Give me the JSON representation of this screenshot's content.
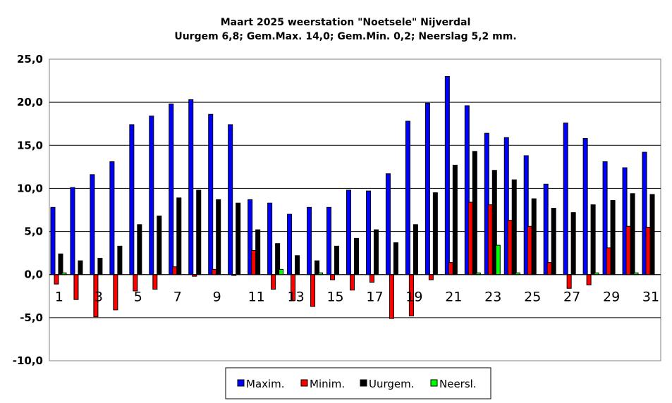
{
  "chart_data": {
    "type": "bar",
    "title": "Maart 2025  weerstation \"Noetsele\" Nijverdal",
    "subtitle": "Uurgem 6,8; Gem.Max. 14,0; Gem.Min. 0,2; Neerslag 5,2 mm.",
    "xlabel": "",
    "ylabel": "",
    "ylim": [
      -10,
      25
    ],
    "ytick_step": 5,
    "ytick_labels": [
      "25,0",
      "20,0",
      "15,0",
      "10,0",
      "5,0",
      "0,0",
      "-5,0",
      "-10,0"
    ],
    "grid": true,
    "legend_position": "bottom-center",
    "categories": [
      "1",
      "2",
      "3",
      "4",
      "5",
      "6",
      "7",
      "8",
      "9",
      "10",
      "11",
      "12",
      "13",
      "14",
      "15",
      "16",
      "17",
      "18",
      "19",
      "20",
      "21",
      "22",
      "23",
      "24",
      "25",
      "26",
      "27",
      "28",
      "29",
      "30",
      "31"
    ],
    "x_tick_labels": [
      "1",
      "3",
      "5",
      "7",
      "9",
      "11",
      "13",
      "15",
      "17",
      "19",
      "21",
      "23",
      "25",
      "27",
      "29",
      "31"
    ],
    "series": [
      {
        "name": "Maxim.",
        "color": "#0000ff",
        "values": [
          7.8,
          10.1,
          11.6,
          13.1,
          17.4,
          18.4,
          19.8,
          20.3,
          18.6,
          17.4,
          8.7,
          8.3,
          7.0,
          7.8,
          7.8,
          9.8,
          9.7,
          11.7,
          17.8,
          19.9,
          23.0,
          19.6,
          16.4,
          15.9,
          13.8,
          10.5,
          17.6,
          15.8,
          13.1,
          12.4,
          14.2
        ]
      },
      {
        "name": "Minim.",
        "color": "#ff0000",
        "values": [
          -1.1,
          -2.9,
          -4.9,
          -4.1,
          -1.9,
          -1.7,
          0.9,
          -0.2,
          0.6,
          -0.1,
          2.8,
          -1.7,
          -3.0,
          -3.7,
          -0.6,
          -1.8,
          -0.9,
          -5.1,
          -4.8,
          -0.6,
          1.4,
          8.4,
          8.1,
          6.3,
          5.6,
          1.4,
          -1.6,
          -1.2,
          3.1,
          5.6,
          5.5
        ]
      },
      {
        "name": "Uurgem.",
        "color": "#000000",
        "values": [
          2.4,
          1.6,
          1.9,
          3.3,
          5.8,
          6.8,
          8.9,
          9.8,
          8.7,
          8.3,
          5.2,
          3.6,
          2.2,
          1.6,
          3.3,
          4.2,
          5.2,
          3.7,
          5.8,
          9.5,
          12.7,
          14.3,
          12.1,
          11.0,
          8.8,
          7.7,
          7.2,
          8.1,
          8.6,
          9.4,
          9.3
        ]
      },
      {
        "name": "Neersl.",
        "color": "#00ff00",
        "values": [
          0.2,
          0,
          0,
          0,
          0,
          0,
          0,
          0,
          0,
          0,
          0,
          0.6,
          0,
          0.2,
          0,
          0,
          0,
          0,
          0,
          0,
          0,
          0.2,
          3.4,
          0.2,
          0,
          0,
          0,
          0.2,
          0,
          0.2,
          0
        ]
      }
    ]
  }
}
